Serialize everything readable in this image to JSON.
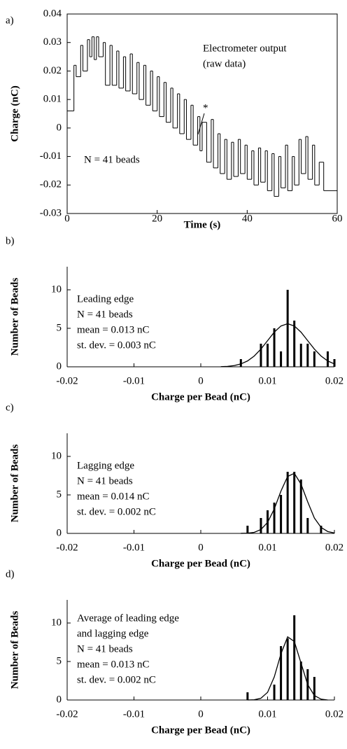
{
  "chart_data": [
    {
      "type": "step",
      "panel": "a)",
      "xlabel": "Time (s)",
      "ylabel": "Charge (nC)",
      "xlim": [
        0,
        60
      ],
      "xticks": [
        0,
        20,
        40,
        60
      ],
      "ylim": [
        -0.03,
        0.04
      ],
      "yticks": [
        -0.03,
        -0.02,
        -0.01,
        0,
        0.01,
        0.02,
        0.03,
        0.04
      ],
      "annotation": [
        "Electrometer output",
        "(raw data)",
        "*",
        "N = 41 beads"
      ],
      "color": "#000000",
      "x": [
        0,
        1.5,
        2,
        3,
        3.5,
        4.5,
        5,
        5.5,
        6,
        6.5,
        7,
        8,
        8.5,
        9.5,
        10,
        11,
        11.5,
        12.5,
        13,
        14,
        14.5,
        15.5,
        16,
        17,
        17.5,
        18.5,
        19,
        20,
        20.5,
        21.5,
        22,
        23,
        23.5,
        24.5,
        25,
        26,
        26.5,
        27.5,
        28,
        29,
        29.5,
        30,
        31,
        32,
        32.5,
        33.5,
        34,
        35,
        35.5,
        36.5,
        37,
        38,
        38.5,
        39.5,
        40,
        41,
        41.5,
        42.5,
        43,
        44,
        44.5,
        45.5,
        46,
        47,
        47.5,
        48.5,
        49,
        50,
        50.5,
        51.5,
        52,
        53,
        53.5,
        54.5,
        55,
        56,
        57
      ],
      "values": [
        0.006,
        0.022,
        0.018,
        0.029,
        0.02,
        0.031,
        0.025,
        0.032,
        0.024,
        0.032,
        0.025,
        0.03,
        0.015,
        0.029,
        0.015,
        0.027,
        0.014,
        0.025,
        0.013,
        0.026,
        0.012,
        0.023,
        0.01,
        0.022,
        0.008,
        0.02,
        0.006,
        0.018,
        0.004,
        0.016,
        0.002,
        0.014,
        0,
        0.012,
        -0.002,
        0.01,
        -0.004,
        0.008,
        -0.006,
        0.004,
        -0.008,
        0.002,
        -0.012,
        0.003,
        -0.014,
        -0.002,
        -0.016,
        -0.004,
        -0.018,
        -0.005,
        -0.017,
        -0.004,
        -0.016,
        -0.006,
        -0.018,
        -0.008,
        -0.02,
        -0.007,
        -0.019,
        -0.008,
        -0.022,
        -0.009,
        -0.024,
        -0.01,
        -0.021,
        -0.006,
        -0.022,
        -0.01,
        -0.02,
        -0.004,
        -0.016,
        -0.003,
        -0.018,
        -0.006,
        -0.02,
        -0.012,
        -0.022
      ]
    },
    {
      "type": "hist",
      "panel": "b)",
      "xlabel": "Charge per Bead (nC)",
      "ylabel": "Number of Beads",
      "xlim": [
        -0.02,
        0.02
      ],
      "xticks": [
        -0.02,
        -0.01,
        0,
        0.01,
        0.02
      ],
      "ylim": [
        0,
        13
      ],
      "yticks": [
        0,
        5,
        10
      ],
      "annotation": [
        "Leading edge",
        "N = 41 beads",
        "mean = 0.013 nC",
        "st. dev. = 0.003 nC"
      ],
      "color": "#000000",
      "x": [
        0.006,
        0.009,
        0.01,
        0.011,
        0.012,
        0.013,
        0.014,
        0.015,
        0.016,
        0.017,
        0.019,
        0.02
      ],
      "values": [
        1,
        3,
        3,
        5,
        2,
        10,
        6,
        3,
        3,
        2,
        2,
        1
      ],
      "fit": {
        "x": [
          0.003,
          0.004,
          0.005,
          0.006,
          0.007,
          0.008,
          0.009,
          0.01,
          0.011,
          0.012,
          0.013,
          0.014,
          0.015,
          0.016,
          0.017,
          0.018,
          0.019,
          0.02
        ],
        "values": [
          0.02,
          0.06,
          0.16,
          0.37,
          0.76,
          1.4,
          2.3,
          3.4,
          4.5,
          5.3,
          5.6,
          5.3,
          4.5,
          3.4,
          2.3,
          1.4,
          0.76,
          0.37
        ]
      }
    },
    {
      "type": "hist",
      "panel": "c)",
      "xlabel": "Charge per Bead (nC)",
      "ylabel": "Number of Beads",
      "xlim": [
        -0.02,
        0.02
      ],
      "xticks": [
        -0.02,
        -0.01,
        0,
        0.01,
        0.02
      ],
      "ylim": [
        0,
        13
      ],
      "yticks": [
        0,
        5,
        10
      ],
      "annotation": [
        "Lagging edge",
        "N = 41 beads",
        "mean = 0.014 nC",
        "st. dev. = 0.002 nC"
      ],
      "color": "#000000",
      "x": [
        0.007,
        0.009,
        0.01,
        0.011,
        0.012,
        0.013,
        0.014,
        0.015,
        0.016,
        0.018
      ],
      "values": [
        1,
        2,
        3,
        4,
        5,
        8,
        8,
        7,
        2,
        1
      ],
      "fit": {
        "x": [
          0.006,
          0.007,
          0.008,
          0.009,
          0.01,
          0.011,
          0.012,
          0.013,
          0.014,
          0.015,
          0.016,
          0.017,
          0.018,
          0.019,
          0.02
        ],
        "values": [
          0.005,
          0.03,
          0.14,
          0.5,
          1.43,
          3.18,
          5.5,
          7.4,
          7.8,
          6.4,
          4.1,
          2,
          0.78,
          0.24,
          0.06
        ]
      }
    },
    {
      "type": "hist",
      "panel": "d)",
      "xlabel": "Charge per Bead (nC)",
      "ylabel": "Number of Beads",
      "xlim": [
        -0.02,
        0.02
      ],
      "xticks": [
        -0.02,
        -0.01,
        0,
        0.01,
        0.02
      ],
      "ylim": [
        0,
        13
      ],
      "yticks": [
        0,
        5,
        10
      ],
      "annotation": [
        "Average of leading edge",
        "and lagging edge",
        "N = 41 beads",
        "mean = 0.013 nC",
        "st. dev. = 0.002 nC"
      ],
      "color": "#000000",
      "x": [
        0.007,
        0.011,
        0.012,
        0.013,
        0.014,
        0.015,
        0.016,
        0.017
      ],
      "values": [
        1,
        2,
        7,
        8,
        11,
        5,
        4,
        3
      ],
      "fit": {
        "x": [
          0.007,
          0.008,
          0.009,
          0.01,
          0.011,
          0.012,
          0.013,
          0.014,
          0.015,
          0.016,
          0.017,
          0.018,
          0.019
        ],
        "values": [
          0,
          0.03,
          0.23,
          1,
          3,
          6,
          8.2,
          7.6,
          4.8,
          2,
          0.58,
          0.11,
          0
        ]
      }
    }
  ]
}
